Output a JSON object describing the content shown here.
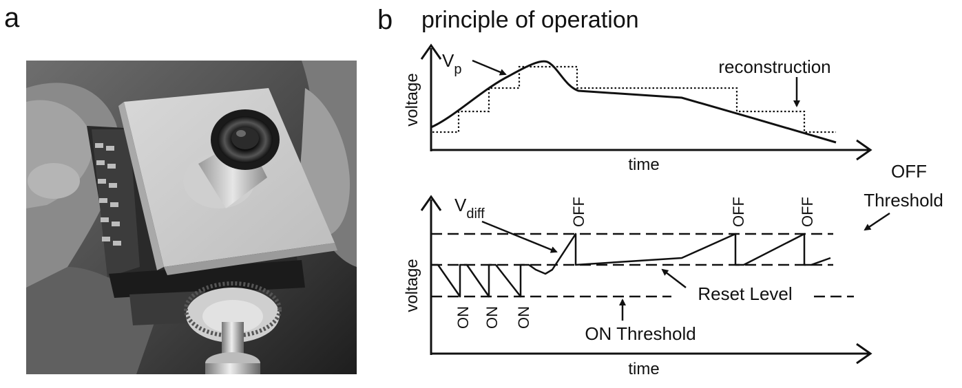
{
  "panel_a": {
    "letter": "a"
  },
  "panel_b": {
    "letter": "b",
    "title": "principle of operation",
    "top_plot": {
      "ylabel": "voltage",
      "xlabel": "time",
      "signal_label_main": "V",
      "signal_label_sub": "p",
      "reconstruction_label": "reconstruction"
    },
    "bottom_plot": {
      "ylabel": "voltage",
      "xlabel": "time",
      "signal_label_main": "V",
      "signal_label_sub": "diff",
      "off_event_label": "OFF",
      "on_event_label": "ON",
      "off_threshold_line1": "OFF",
      "off_threshold_line2": "Threshold",
      "reset_level_label": "Reset Level",
      "on_threshold_label": "ON Threshold"
    }
  }
}
